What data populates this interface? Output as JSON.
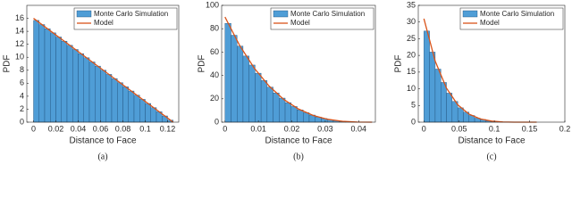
{
  "chart_data": [
    {
      "type": "histogram",
      "caption": "(a)",
      "xlabel": "Distance to Face",
      "ylabel": "PDF",
      "xlim": [
        -0.006,
        0.13
      ],
      "ylim": [
        0,
        18
      ],
      "xticks": [
        0,
        0.02,
        0.04,
        0.06,
        0.08,
        0.1,
        0.12
      ],
      "yticks": [
        0,
        2,
        4,
        6,
        8,
        10,
        12,
        14,
        16
      ],
      "legend": "upper right",
      "bins": [
        0,
        0.005,
        0.01,
        0.015,
        0.02,
        0.025,
        0.03,
        0.035,
        0.04,
        0.045,
        0.05,
        0.055,
        0.06,
        0.065,
        0.07,
        0.075,
        0.08,
        0.085,
        0.09,
        0.095,
        0.1,
        0.105,
        0.11,
        0.115,
        0.12,
        0.125
      ],
      "series": [
        {
          "name": "Monte Carlo Simulation",
          "color": "#4f9dd6",
          "values": [
            15.68,
            15.04,
            14.4,
            13.76,
            13.12,
            12.48,
            11.84,
            11.2,
            10.56,
            9.92,
            9.28,
            8.64,
            8,
            7.36,
            6.72,
            6.08,
            5.44,
            4.8,
            4.16,
            3.52,
            2.88,
            2.24,
            1.6,
            0.96,
            0.32
          ]
        },
        {
          "name": "Model",
          "color": "#d95319",
          "x": [
            0,
            0.125
          ],
          "values": [
            16,
            0
          ]
        }
      ]
    },
    {
      "type": "histogram",
      "caption": "(b)",
      "xlabel": "Distance to Face",
      "ylabel": "PDF",
      "xlim": [
        -0.001,
        0.045
      ],
      "ylim": [
        0,
        100
      ],
      "xticks": [
        0,
        0.01,
        0.02,
        0.03,
        0.04
      ],
      "yticks": [
        0,
        20,
        40,
        60,
        80,
        100
      ],
      "legend": "upper right",
      "bins": [
        0,
        0.0018,
        0.0036,
        0.0054,
        0.0072,
        0.009,
        0.0108,
        0.0126,
        0.0144,
        0.0162,
        0.018,
        0.0198,
        0.0216,
        0.0234,
        0.0252,
        0.027,
        0.0288,
        0.0306,
        0.0324,
        0.0342,
        0.036,
        0.0378,
        0.0396,
        0.0414,
        0.0432
      ],
      "series": [
        {
          "name": "Monte Carlo Simulation",
          "color": "#4f9dd6",
          "values": [
            84.6,
            74.4,
            65.1,
            56.6,
            48.9,
            41.9,
            35.6,
            30.0,
            25.0,
            20.6,
            16.7,
            13.4,
            10.5,
            8.1,
            6.1,
            4.4,
            3.1,
            2.1,
            1.3,
            0.7,
            0.4,
            0.2,
            0.05,
            0.01
          ]
        },
        {
          "name": "Model",
          "color": "#d95319",
          "x": [
            0,
            0.0044,
            0.0088,
            0.0132,
            0.0176,
            0.022,
            0.0264,
            0.0308,
            0.0352,
            0.0396,
            0.044
          ],
          "values": [
            90,
            65.6,
            46.1,
            30.9,
            19.4,
            11.25,
            5.76,
            2.43,
            0.72,
            0.09,
            0
          ]
        }
      ]
    },
    {
      "type": "histogram",
      "caption": "(c)",
      "xlabel": "Distance to Face",
      "ylabel": "PDF",
      "xlim": [
        -0.008,
        0.2
      ],
      "ylim": [
        0,
        35
      ],
      "xticks": [
        0,
        0.05,
        0.1,
        0.15,
        0.2
      ],
      "yticks": [
        0,
        5,
        10,
        15,
        20,
        25,
        30,
        35
      ],
      "legend": "upper right",
      "bins": [
        0,
        0.008,
        0.016,
        0.024,
        0.032,
        0.04,
        0.048,
        0.056,
        0.064,
        0.072,
        0.08,
        0.088,
        0.096,
        0.104,
        0.112,
        0.12,
        0.128,
        0.136,
        0.144,
        0.152,
        0.16
      ],
      "series": [
        {
          "name": "Monte Carlo Simulation",
          "color": "#4f9dd6",
          "values": [
            27.3,
            21.0,
            15.9,
            11.9,
            8.7,
            6.2,
            4.3,
            3.0,
            2.0,
            1.2,
            0.8,
            0.4,
            0.2,
            0.1,
            0.05,
            0.02,
            0.01,
            0,
            0,
            0
          ]
        },
        {
          "name": "Model",
          "color": "#d95319",
          "x": [
            0,
            0.016,
            0.032,
            0.048,
            0.064,
            0.08,
            0.096,
            0.112,
            0.128,
            0.144,
            0.16
          ],
          "values": [
            31,
            18.3,
            10.2,
            5.21,
            2.41,
            0.97,
            0.32,
            0.075,
            0.01,
            0.0003,
            0
          ]
        }
      ]
    }
  ]
}
